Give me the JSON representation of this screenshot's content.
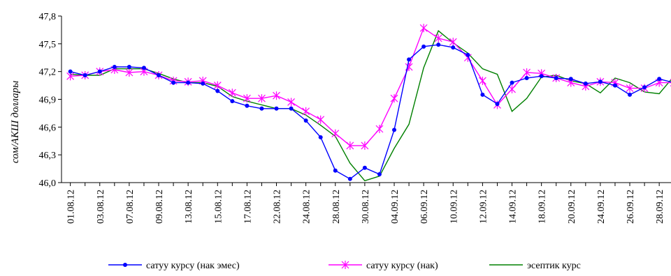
{
  "chart_data": {
    "type": "line",
    "ylabel": "сом/АКШ доллары",
    "xlabel": "",
    "ylim": [
      46.0,
      47.8
    ],
    "yticks": [
      "46,0",
      "46,3",
      "46,6",
      "46,9",
      "47,2",
      "47,5",
      "47,8"
    ],
    "ytick_values": [
      46.0,
      46.3,
      46.6,
      46.9,
      47.2,
      47.5,
      47.8
    ],
    "xtick_labels": [
      "01.08.12",
      "03.08.12",
      "07.08.12",
      "09.08.12",
      "13.08.12",
      "15.08.12",
      "17.08.12",
      "22.08.12",
      "24.08.12",
      "28.08.12",
      "30.08.12",
      "04.09.12",
      "06.09.12",
      "10.09.12",
      "12.09.12",
      "14.09.12",
      "18.09.12",
      "20.09.12",
      "24.09.12",
      "26.09.12",
      "28.09.12"
    ],
    "n_points": 42,
    "grid": false,
    "legend_position": "bottom",
    "series": [
      {
        "name": "сатуу курсу (нак эмес)",
        "color": "#0000ff",
        "marker": "circle",
        "values": [
          47.2,
          47.16,
          47.2,
          47.25,
          47.25,
          47.24,
          47.16,
          47.08,
          47.08,
          47.07,
          46.99,
          46.88,
          46.83,
          46.8,
          46.8,
          46.8,
          46.67,
          46.49,
          46.13,
          46.04,
          46.16,
          46.09,
          46.57,
          47.33,
          47.47,
          47.49,
          47.46,
          47.38,
          46.95,
          46.85,
          47.08,
          47.13,
          47.15,
          47.13,
          47.12,
          47.07,
          47.09,
          47.05,
          46.95,
          47.03,
          47.12,
          47.08
        ]
      },
      {
        "name": "сатуу курсу  (нак)",
        "color": "#ff00ff",
        "marker": "asterisk",
        "values": [
          47.15,
          47.16,
          47.2,
          47.22,
          47.19,
          47.2,
          47.16,
          47.1,
          47.09,
          47.1,
          47.05,
          46.97,
          46.91,
          46.91,
          46.94,
          46.87,
          46.77,
          46.68,
          46.53,
          46.4,
          46.4,
          46.58,
          46.91,
          47.25,
          47.67,
          47.56,
          47.52,
          47.35,
          47.1,
          46.84,
          47.01,
          47.19,
          47.18,
          47.13,
          47.08,
          47.04,
          47.09,
          47.08,
          47.02,
          47.02,
          47.08,
          47.08
        ]
      },
      {
        "name": "эсептик курс",
        "color": "#008000",
        "marker": "none",
        "values": [
          47.17,
          47.16,
          47.16,
          47.23,
          47.23,
          47.23,
          47.18,
          47.12,
          47.08,
          47.08,
          47.04,
          46.93,
          46.88,
          46.84,
          46.8,
          46.8,
          46.73,
          46.62,
          46.5,
          46.21,
          46.02,
          46.07,
          46.37,
          46.63,
          47.24,
          47.64,
          47.51,
          47.4,
          47.23,
          47.17,
          46.77,
          46.91,
          47.14,
          47.16,
          47.1,
          47.07,
          46.97,
          47.13,
          47.08,
          46.98,
          46.96,
          47.15
        ]
      }
    ]
  }
}
